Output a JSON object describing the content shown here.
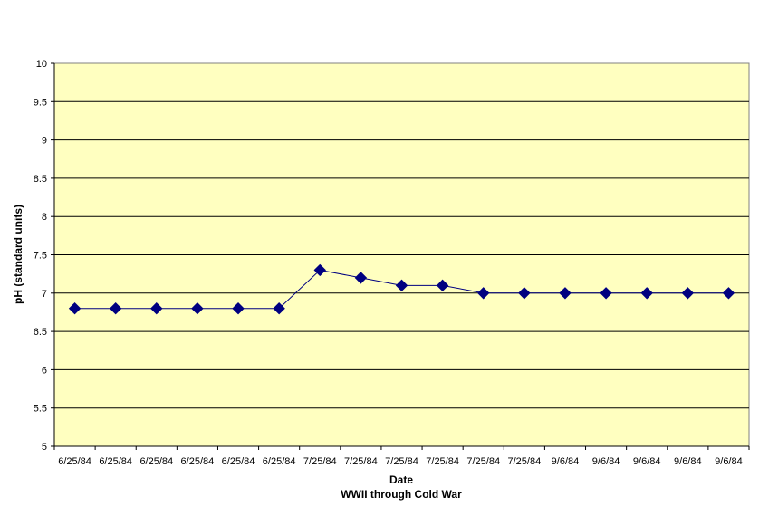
{
  "chart_data": {
    "type": "line",
    "categories": [
      "6/25/84",
      "6/25/84",
      "6/25/84",
      "6/25/84",
      "6/25/84",
      "6/25/84",
      "7/25/84",
      "7/25/84",
      "7/25/84",
      "7/25/84",
      "7/25/84",
      "7/25/84",
      "9/6/84",
      "9/6/84",
      "9/6/84",
      "9/6/84",
      "9/6/84"
    ],
    "series": [
      {
        "values": [
          6.8,
          6.8,
          6.8,
          6.8,
          6.8,
          6.8,
          7.3,
          7.2,
          7.1,
          7.1,
          7.0,
          7.0,
          7.0,
          7.0,
          7.0,
          7.0,
          7.0
        ]
      }
    ],
    "xlabel": "Date",
    "xsublabel": "WWII through Cold War",
    "ylabel": "pH (standard units)",
    "ylim": [
      5,
      10
    ],
    "yticks": [
      "5",
      "5.5",
      "6",
      "6.5",
      "7",
      "7.5",
      "8",
      "8.5",
      "9",
      "9.5",
      "10"
    ],
    "grid": true,
    "colors": {
      "plot_bg": "#FFFFC0",
      "line": "#000080",
      "marker": "#000080",
      "grid": "#000000"
    }
  }
}
